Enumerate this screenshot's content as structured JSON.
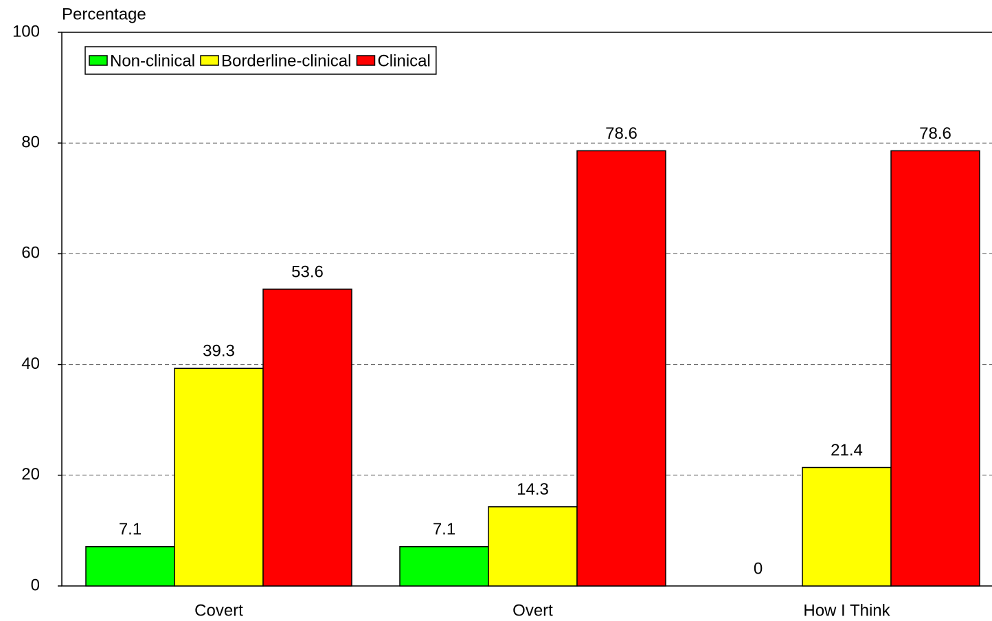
{
  "chart_data": {
    "type": "bar",
    "y_label": "Percentage",
    "categories": [
      "Covert",
      "Overt",
      "How I Think"
    ],
    "series": [
      {
        "name": "Non-clinical",
        "color": "#00ff00",
        "values": [
          7.1,
          7.1,
          0
        ]
      },
      {
        "name": "Borderline-clinical",
        "color": "#ffff00",
        "values": [
          39.3,
          14.3,
          21.4
        ]
      },
      {
        "name": "Clinical",
        "color": "#ff0000",
        "values": [
          53.6,
          78.6,
          78.6
        ]
      }
    ],
    "ylim": [
      0,
      100
    ],
    "yticks": [
      0,
      20,
      40,
      60,
      80,
      100
    ],
    "grid": true,
    "legend": "top-left"
  }
}
